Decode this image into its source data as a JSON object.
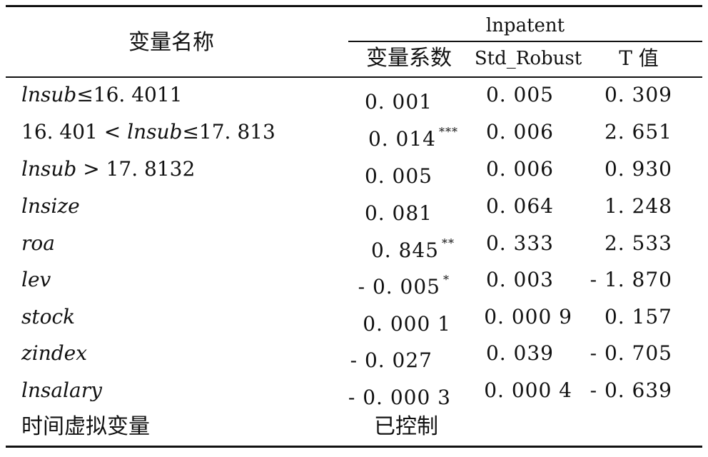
{
  "table": {
    "header": {
      "var_name": "变量名称",
      "group": "lnpatent",
      "col_coef": "变量系数",
      "col_std": "Std_Robust",
      "col_t": "T 值"
    },
    "rows": [
      {
        "l1": "lnsub",
        "l2": "≤16. 4011",
        "l3": "",
        "coef": "0. 001",
        "stars": "",
        "std": "0. 005",
        "t": "0. 309"
      },
      {
        "l1": "16. 401 < ",
        "l2": "lnsub",
        "l3": "≤17. 813",
        "coef": "0. 014",
        "stars": "***",
        "std": "0. 006",
        "t": "2. 651"
      },
      {
        "l1": "lnsub",
        "l2": " > 17. 8132",
        "l3": "",
        "coef": "0. 005",
        "stars": "",
        "std": "0. 006",
        "t": "0. 930"
      },
      {
        "l1": "lnsize",
        "l2": "",
        "l3": "",
        "coef": "0. 081",
        "stars": "",
        "std": "0. 064",
        "t": "1. 248"
      },
      {
        "l1": "roa",
        "l2": "",
        "l3": "",
        "coef": "0. 845",
        "stars": "**",
        "std": "0. 333",
        "t": "2. 533"
      },
      {
        "l1": "lev",
        "l2": "",
        "l3": "",
        "coef": "- 0. 005",
        "stars": "*",
        "std": "0. 003",
        "t": "- 1. 870"
      },
      {
        "l1": "stock",
        "l2": "",
        "l3": "",
        "coef": "0. 000 1",
        "stars": "",
        "std": "0. 000 9",
        "t": "0. 157"
      },
      {
        "l1": "zindex",
        "l2": "",
        "l3": "",
        "coef": "- 0. 027",
        "stars": "",
        "std": "0. 039",
        "t": "- 0. 705"
      },
      {
        "l1": "lnsalary",
        "l2": "",
        "l3": "",
        "coef": "- 0. 000 3",
        "stars": "",
        "std": "0. 000 4",
        "t": "- 0. 639"
      }
    ],
    "footer": {
      "label": "时间虚拟变量",
      "value": "已控制"
    }
  }
}
